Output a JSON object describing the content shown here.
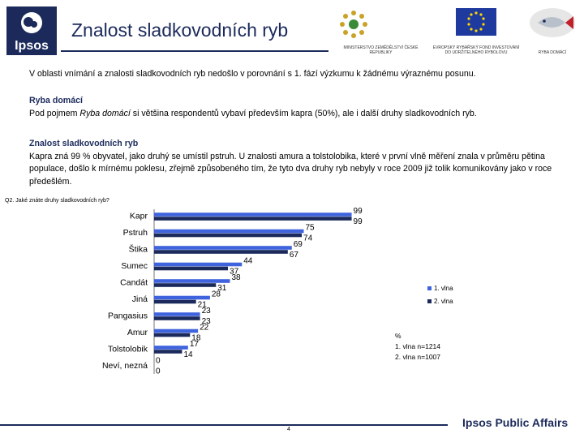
{
  "header": {
    "logo_text": "Ipsos",
    "title": "Znalost sladkovodních ryb",
    "logos": [
      {
        "label": "MINISTERSTVO ZEMĚDĚLSTVÍ ČESKÉ REPUBLIKY"
      },
      {
        "label": "EVROPSKÝ RYBÁŘSKÝ FOND INVESTOVÁNÍ DO UDRŽITELNÉHO RYBOLOVU"
      },
      {
        "label": "RYBA DOMÁCÍ"
      }
    ]
  },
  "body": {
    "intro": "V oblasti vnímání a znalosti sladkovodních ryb nedošlo v porovnání s 1. fází výzkumu k žádnému výraznému posunu.",
    "section1_title": "Ryba domácí",
    "section1_pre": "Pod pojmem ",
    "section1_em": "Ryba domácí",
    "section1_post": " si většina respondentů vybaví především kapra (50%), ale i další druhy sladkovodních ryb.",
    "section2_title": "Znalost sladkovodních ryb",
    "section2_text": "Kapra zná 99 % obyvatel, jako druhý se umístil pstruh. U znalosti amura a tolstolobika, které v první vlně měření znala v průměru pětina populace, došlo k mírnému poklesu, zřejmě způsobeného tím, že tyto dva druhy ryb nebyly v roce 2009 již tolik komunikovány jako v roce předešlém."
  },
  "question": "Q2. Jaké znáte druhy sladkovodních ryb?",
  "colors": {
    "wave1": "#3f63dd",
    "wave2": "#1b2a5b",
    "brand": "#1b2a5b"
  },
  "chart_data": {
    "type": "bar",
    "orientation": "horizontal",
    "categories": [
      "Kapr",
      "Pstruh",
      "Štika",
      "Sumec",
      "Candát",
      "Jiná",
      "Pangasius",
      "Amur",
      "Tolstolobik",
      "Neví, nezná"
    ],
    "series": [
      {
        "name": "1. vlna",
        "values": [
          99,
          75,
          69,
          44,
          38,
          28,
          23,
          22,
          17,
          0
        ]
      },
      {
        "name": "2. vlna",
        "values": [
          99,
          74,
          67,
          37,
          31,
          21,
          23,
          18,
          14,
          0
        ]
      }
    ],
    "xlim": [
      0,
      100
    ],
    "legend_position": "right",
    "notes": [
      "%",
      "1. vlna n=1214",
      "2. vlna n=1007"
    ]
  },
  "footer": {
    "page_number": "4",
    "brand": "Ipsos Public Affairs"
  }
}
